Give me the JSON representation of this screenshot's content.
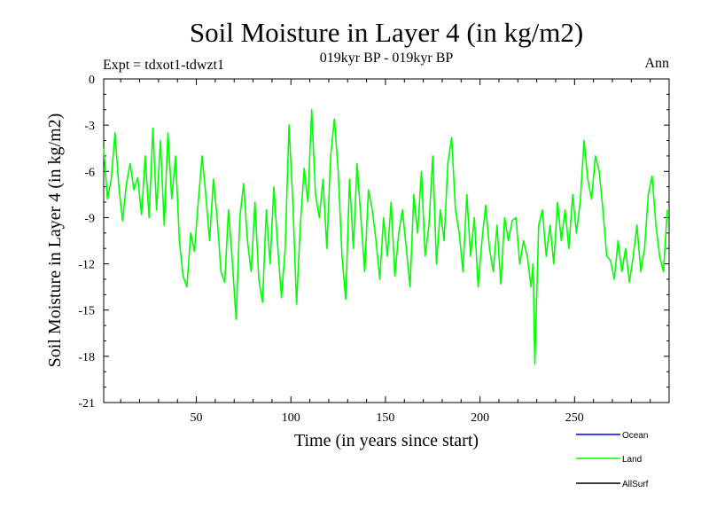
{
  "chart_data": {
    "type": "line",
    "title": "Soil Moisture in Layer 4 (in kg/m2)",
    "subtitle": "019kyr BP - 019kyr BP",
    "experiment": "Expt = tdxot1-tdwzt1",
    "period": "Ann",
    "xlabel": "Time (in years since start)",
    "ylabel": "Soil Moisture in Layer 4 (in kg/m2)",
    "xlim": [
      1,
      300
    ],
    "ylim": [
      -21,
      0
    ],
    "xticks": [
      50,
      100,
      150,
      200,
      250
    ],
    "yticks": [
      0,
      -3,
      -6,
      -9,
      -12,
      -15,
      -18,
      -21
    ],
    "series": [
      {
        "name": "Land",
        "color": "#00ff00",
        "x": [
          1,
          3,
          5,
          7,
          9,
          11,
          13,
          15,
          17,
          19,
          21,
          23,
          25,
          27,
          29,
          31,
          33,
          35,
          37,
          39,
          41,
          43,
          45,
          47,
          49,
          51,
          53,
          55,
          57,
          59,
          61,
          63,
          65,
          67,
          69,
          71,
          73,
          75,
          77,
          79,
          81,
          83,
          85,
          87,
          89,
          91,
          93,
          95,
          97,
          99,
          101,
          103,
          105,
          107,
          109,
          111,
          113,
          115,
          117,
          119,
          121,
          123,
          125,
          127,
          129,
          131,
          133,
          135,
          137,
          139,
          141,
          143,
          145,
          147,
          149,
          151,
          153,
          155,
          157,
          159,
          161,
          163,
          165,
          167,
          169,
          171,
          173,
          175,
          177,
          179,
          181,
          183,
          185,
          187,
          189,
          191,
          193,
          195,
          197,
          199,
          201,
          203,
          205,
          207,
          209,
          211,
          213,
          215,
          217,
          219,
          221,
          223,
          225,
          227,
          228,
          229,
          231,
          233,
          235,
          237,
          239,
          241,
          243,
          245,
          247,
          249,
          251,
          253,
          255,
          257,
          259,
          261,
          263,
          265,
          267,
          269,
          271,
          273,
          275,
          277,
          279,
          281,
          283,
          285,
          287,
          289,
          291,
          293,
          295,
          297,
          299
        ],
        "values": [
          -4.5,
          -7.8,
          -6.5,
          -3.5,
          -7.0,
          -9.2,
          -6.8,
          -5.5,
          -7.2,
          -6.4,
          -8.8,
          -5.0,
          -9.0,
          -3.2,
          -8.5,
          -4.0,
          -9.5,
          -3.5,
          -7.8,
          -5.0,
          -10.5,
          -12.8,
          -13.5,
          -10.0,
          -11.2,
          -8.0,
          -5.0,
          -7.5,
          -10.5,
          -6.5,
          -9.0,
          -12.5,
          -13.2,
          -8.5,
          -11.8,
          -15.6,
          -9.0,
          -6.8,
          -10.5,
          -12.5,
          -8.0,
          -13.0,
          -14.5,
          -8.5,
          -12.0,
          -7.0,
          -10.8,
          -14.2,
          -11.0,
          -3.0,
          -8.0,
          -14.6,
          -9.5,
          -5.8,
          -8.0,
          -2.0,
          -7.5,
          -9.0,
          -6.5,
          -11.0,
          -5.0,
          -2.6,
          -6.0,
          -11.5,
          -14.3,
          -6.5,
          -11.0,
          -5.5,
          -9.0,
          -12.5,
          -7.2,
          -8.5,
          -10.5,
          -13.0,
          -9.0,
          -11.5,
          -8.0,
          -12.8,
          -10.0,
          -8.5,
          -11.0,
          -13.5,
          -7.5,
          -10.0,
          -6.0,
          -11.5,
          -9.5,
          -5.0,
          -12.0,
          -8.5,
          -10.5,
          -5.5,
          -3.8,
          -8.5,
          -10.0,
          -12.5,
          -7.5,
          -11.5,
          -9.0,
          -13.5,
          -10.5,
          -8.2,
          -11.0,
          -12.5,
          -9.5,
          -13.3,
          -9.0,
          -10.5,
          -9.2,
          -9.0,
          -12.0,
          -10.5,
          -11.5,
          -13.5,
          -12.0,
          -18.5,
          -9.5,
          -8.5,
          -11.5,
          -9.5,
          -12.0,
          -8.0,
          -10.5,
          -8.5,
          -11.0,
          -7.5,
          -10.0,
          -8.0,
          -4.0,
          -6.5,
          -7.8,
          -5.0,
          -6.0,
          -8.5,
          -11.5,
          -11.8,
          -13.0,
          -10.5,
          -12.5,
          -11.0,
          -13.2,
          -11.5,
          -9.5,
          -12.5,
          -11.0,
          -7.5,
          -6.3,
          -9.5,
          -11.5,
          -12.5,
          -8.5
        ]
      }
    ],
    "legend": [
      {
        "label": "Ocean",
        "color": "#0000ff"
      },
      {
        "label": "Land",
        "color": "#00ff00"
      },
      {
        "label": "AllSurf",
        "color": "#000000"
      }
    ]
  }
}
